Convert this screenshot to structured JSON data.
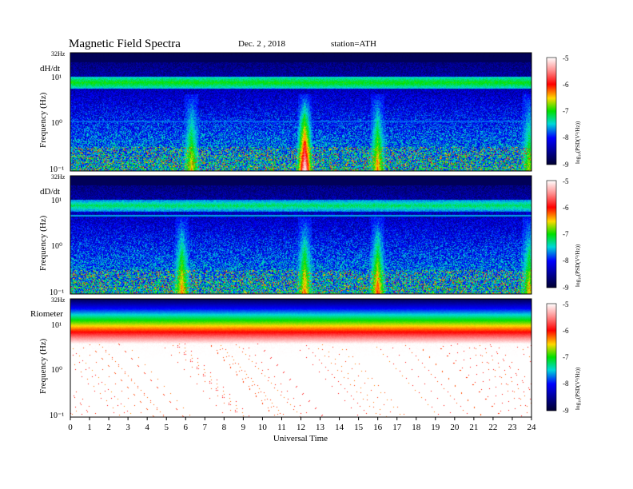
{
  "header": {
    "title": "Magnetic  Field  Spectra",
    "date": "Dec. 2  ,  2018",
    "station": "station=ATH"
  },
  "chart_data": [
    {
      "type": "heatmap",
      "panel_label": "dH/dt",
      "ylabel": "Frequency  (Hz)",
      "top_freq_label": "32Hz",
      "yticks": [
        "10¹",
        "10⁰",
        "10⁻¹"
      ],
      "ylim_hz": [
        0.1,
        32
      ],
      "xlim_ut": [
        0,
        24
      ],
      "colorbar": {
        "label": "log₁₀(PSD(V²/Hz))",
        "range": [
          -9,
          -5
        ],
        "ticks": [
          "-5",
          "-6",
          "-7",
          "-8",
          "-9"
        ]
      },
      "features": [
        {
          "type": "horizontal_band",
          "freq_hz": 7.5,
          "level": -7.0
        },
        {
          "type": "horizontal_line",
          "freq_hz": 1.1,
          "level": -7.8
        },
        {
          "type": "burst",
          "ut": 12.2,
          "level": -5.5
        },
        {
          "type": "burst",
          "ut": 16.0,
          "level": -6.8
        },
        {
          "type": "burst",
          "ut": 6.3,
          "level": -7.0
        },
        {
          "type": "burst",
          "ut": 23.9,
          "level": -7.2
        }
      ]
    },
    {
      "type": "heatmap",
      "panel_label": "dD/dt",
      "ylabel": "Frequency  (Hz)",
      "top_freq_label": "32Hz",
      "yticks": [
        "10¹",
        "10⁰",
        "10⁻¹"
      ],
      "ylim_hz": [
        0.1,
        32
      ],
      "xlim_ut": [
        0,
        24
      ],
      "colorbar": {
        "label": "log₁₀(PSD(V²/Hz))",
        "range": [
          -9,
          -5
        ],
        "ticks": [
          "-5",
          "-6",
          "-7",
          "-8",
          "-9"
        ]
      },
      "features": [
        {
          "type": "horizontal_band",
          "freq_hz": 7.5,
          "level": -7.2
        },
        {
          "type": "horizontal_line",
          "freq_hz": 4.5,
          "level": -7.6
        },
        {
          "type": "burst",
          "ut": 12.2,
          "level": -6.8
        },
        {
          "type": "burst",
          "ut": 16.0,
          "level": -6.6
        },
        {
          "type": "burst",
          "ut": 5.8,
          "level": -6.8
        },
        {
          "type": "burst",
          "ut": 23.9,
          "level": -7.0
        }
      ]
    },
    {
      "type": "heatmap",
      "panel_label": "Riometer",
      "ylabel": "Frequency  (Hz)",
      "top_freq_label": "32Hz",
      "yticks": [
        "10¹",
        "10⁰",
        "10⁻¹"
      ],
      "ylim_hz": [
        0.1,
        32
      ],
      "xlim_ut": [
        0,
        24
      ],
      "colorbar": {
        "label": "log₁₀(PSD(V²/Hz))",
        "range": [
          -9,
          -5
        ],
        "ticks": [
          "-5",
          "-6",
          "-7",
          "-8",
          "-9"
        ]
      },
      "features": [
        {
          "type": "vertical_gradient",
          "top_level": -8.8,
          "bottom_level": -5.0
        }
      ]
    }
  ],
  "xaxis": {
    "label": "Universal Time",
    "ticks": [
      "0",
      "1",
      "2",
      "3",
      "4",
      "5",
      "6",
      "7",
      "8",
      "9",
      "10",
      "11",
      "12",
      "13",
      "14",
      "15",
      "16",
      "17",
      "18",
      "19",
      "20",
      "21",
      "22",
      "23",
      "24"
    ]
  }
}
